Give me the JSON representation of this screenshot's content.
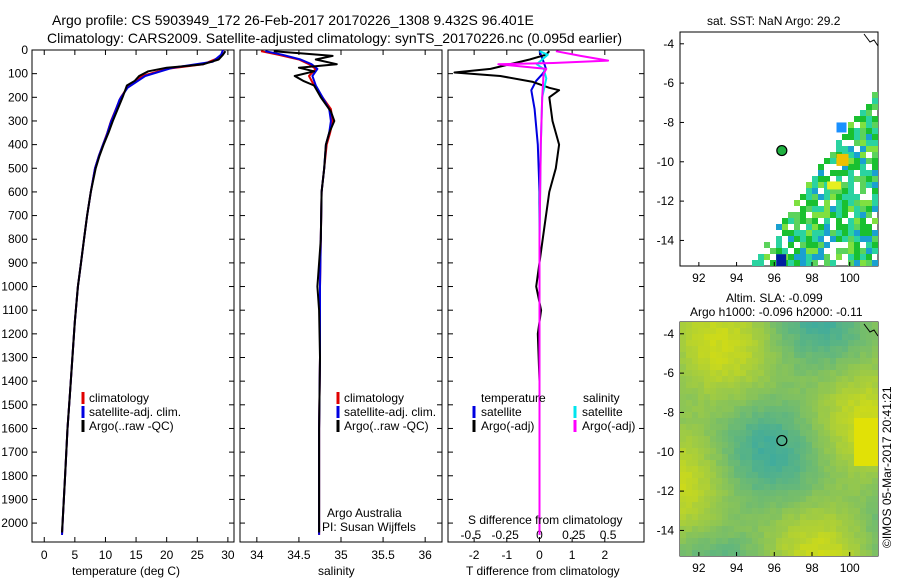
{
  "header": {
    "title": "Argo profile: CS 5903949_172 26-Feb-2017 20170226_1308 9.432S 96.401E",
    "subtitle": "Climatology: CARS2009. Satellite-adjusted climatology: synTS_20170226.nc (0.095d earlier)"
  },
  "colors": {
    "climatology": "#e00000",
    "satellite": "#0000e0",
    "argo": "#000000",
    "sat_salinity": "#00e5ee",
    "argo_salinity": "#ff00ff"
  },
  "chart_data": [
    {
      "type": "line",
      "name": "temperature",
      "xlabel": "temperature (deg C)",
      "ylabel": "",
      "xlim": [
        -2,
        31
      ],
      "ylim": [
        2080,
        0
      ],
      "x_ticks": [
        "0",
        "5",
        "10",
        "15",
        "20",
        "25",
        "30"
      ],
      "y_ticks": [
        "0",
        "100",
        "200",
        "300",
        "400",
        "500",
        "600",
        "700",
        "800",
        "900",
        "1000",
        "1100",
        "1200",
        "1300",
        "1400",
        "1500",
        "1600",
        "1700",
        "1800",
        "1900",
        "2000"
      ],
      "legend": [
        "climatology",
        "satellite-adj. clim.",
        "Argo(..raw -QC)"
      ],
      "series": [
        {
          "name": "climatology",
          "color": "#e00000",
          "points": [
            [
              29.2,
              0
            ],
            [
              28.8,
              30
            ],
            [
              26,
              60
            ],
            [
              20,
              80
            ],
            [
              16,
              110
            ],
            [
              13.8,
              150
            ],
            [
              12.5,
              200
            ],
            [
              11.7,
              250
            ],
            [
              10.9,
              300
            ],
            [
              10.3,
              350
            ],
            [
              9.6,
              400
            ],
            [
              8.9,
              450
            ],
            [
              8.3,
              500
            ],
            [
              7.6,
              600
            ],
            [
              7,
              700
            ],
            [
              6.5,
              800
            ],
            [
              6,
              900
            ],
            [
              5.5,
              1000
            ],
            [
              5,
              1150
            ],
            [
              4.6,
              1300
            ],
            [
              4.2,
              1450
            ],
            [
              3.8,
              1600
            ],
            [
              3.4,
              1800
            ],
            [
              3.1,
              1950
            ],
            [
              2.9,
              2050
            ]
          ]
        },
        {
          "name": "satellite",
          "color": "#0000e0",
          "points": [
            [
              29.2,
              0
            ],
            [
              28.9,
              20
            ],
            [
              27.5,
              50
            ],
            [
              21,
              75
            ],
            [
              16.5,
              110
            ],
            [
              13.6,
              160
            ],
            [
              12.3,
              210
            ],
            [
              11.6,
              260
            ],
            [
              10.8,
              310
            ],
            [
              10.2,
              360
            ],
            [
              9.6,
              400
            ],
            [
              8.9,
              450
            ],
            [
              8.3,
              500
            ],
            [
              7.6,
              600
            ],
            [
              7,
              700
            ],
            [
              6.5,
              800
            ],
            [
              6,
              900
            ],
            [
              5.5,
              1000
            ],
            [
              5,
              1150
            ],
            [
              4.6,
              1300
            ],
            [
              4.2,
              1450
            ],
            [
              3.8,
              1600
            ],
            [
              3.4,
              1800
            ],
            [
              3.1,
              1950
            ],
            [
              2.9,
              2050
            ]
          ]
        },
        {
          "name": "argo",
          "color": "#000000",
          "points": [
            [
              29.6,
              5
            ],
            [
              29.2,
              20
            ],
            [
              28.5,
              40
            ],
            [
              26,
              60
            ],
            [
              23,
              68
            ],
            [
              20,
              75
            ],
            [
              17,
              90
            ],
            [
              15.5,
              110
            ],
            [
              14.8,
              130
            ],
            [
              13.5,
              150
            ],
            [
              12.8,
              200
            ],
            [
              12,
              250
            ],
            [
              11.2,
              300
            ],
            [
              10.5,
              350
            ],
            [
              9.7,
              400
            ],
            [
              9,
              450
            ],
            [
              8.4,
              500
            ],
            [
              7.6,
              600
            ],
            [
              7,
              700
            ],
            [
              6.5,
              800
            ],
            [
              6,
              900
            ],
            [
              5.5,
              1000
            ],
            [
              5,
              1150
            ],
            [
              4.6,
              1300
            ],
            [
              4.2,
              1450
            ],
            [
              3.8,
              1600
            ],
            [
              3.4,
              1800
            ],
            [
              3.1,
              1950
            ],
            [
              2.9,
              2040
            ]
          ]
        }
      ]
    },
    {
      "type": "line",
      "name": "salinity",
      "xlabel": "salinity",
      "xlim": [
        33.8,
        36.2
      ],
      "ylim": [
        2080,
        0
      ],
      "x_ticks": [
        "34",
        "34.5",
        "35",
        "35.5",
        "36"
      ],
      "legend": [
        "climatology",
        "satellite-adj. clim.",
        "Argo(..raw -QC)"
      ],
      "annotation": [
        "Argo Australia",
        "PI: Susan Wijffels"
      ],
      "series": [
        {
          "name": "climatology",
          "color": "#e00000",
          "points": [
            [
              34.05,
              5
            ],
            [
              34.25,
              20
            ],
            [
              34.5,
              40
            ],
            [
              34.62,
              60
            ],
            [
              34.7,
              80
            ],
            [
              34.62,
              110
            ],
            [
              34.68,
              150
            ],
            [
              34.78,
              200
            ],
            [
              34.88,
              250
            ],
            [
              34.9,
              300
            ],
            [
              34.87,
              350
            ],
            [
              34.83,
              400
            ],
            [
              34.8,
              500
            ],
            [
              34.77,
              600
            ],
            [
              34.76,
              800
            ],
            [
              34.75,
              1000
            ],
            [
              34.75,
              1300
            ],
            [
              34.74,
              1600
            ],
            [
              34.74,
              2050
            ]
          ]
        },
        {
          "name": "satellite",
          "color": "#0000e0",
          "points": [
            [
              34.1,
              5
            ],
            [
              34.3,
              20
            ],
            [
              34.52,
              40
            ],
            [
              34.65,
              60
            ],
            [
              34.72,
              80
            ],
            [
              34.66,
              110
            ],
            [
              34.7,
              150
            ],
            [
              34.78,
              200
            ],
            [
              34.86,
              250
            ],
            [
              34.88,
              300
            ],
            [
              34.86,
              350
            ],
            [
              34.82,
              400
            ],
            [
              34.8,
              500
            ],
            [
              34.77,
              600
            ],
            [
              34.76,
              800
            ],
            [
              34.75,
              1000
            ],
            [
              34.75,
              1300
            ],
            [
              34.74,
              1600
            ],
            [
              34.74,
              2050
            ]
          ]
        },
        {
          "name": "argo",
          "color": "#000000",
          "points": [
            [
              34.2,
              5
            ],
            [
              34.55,
              15
            ],
            [
              34.9,
              25
            ],
            [
              34.7,
              40
            ],
            [
              34.95,
              60
            ],
            [
              34.5,
              75
            ],
            [
              34.68,
              90
            ],
            [
              34.45,
              110
            ],
            [
              34.55,
              130
            ],
            [
              34.68,
              150
            ],
            [
              34.76,
              200
            ],
            [
              34.88,
              260
            ],
            [
              34.92,
              300
            ],
            [
              34.86,
              350
            ],
            [
              34.82,
              400
            ],
            [
              34.8,
              500
            ],
            [
              34.77,
              600
            ],
            [
              34.76,
              800
            ],
            [
              34.72,
              1000
            ],
            [
              34.74,
              1100
            ],
            [
              34.75,
              1300
            ],
            [
              34.74,
              1600
            ],
            [
              34.74,
              2040
            ]
          ]
        }
      ]
    },
    {
      "type": "line",
      "name": "difference from climatology",
      "xlabel": "T difference from climatology",
      "x2label": "S difference from climatology",
      "xlim": [
        -2.8,
        3.2
      ],
      "ylim": [
        2080,
        0
      ],
      "x_ticks": [
        "-2",
        "-1",
        "0",
        "1",
        "2"
      ],
      "x2_ticks": [
        "-0.5",
        "-0.25",
        "0",
        "0.25",
        "0.5"
      ],
      "legend_temperature": [
        "temperature",
        "satellite",
        "Argo(-adj)"
      ],
      "legend_salinity": [
        "salinity",
        "satellite",
        "Argo(-adj)"
      ],
      "series": [
        {
          "name": "temperature satellite",
          "color": "#0000e0",
          "points": [
            [
              0,
              5
            ],
            [
              0.1,
              40
            ],
            [
              0.15,
              60
            ],
            [
              0.2,
              80
            ],
            [
              0.1,
              100
            ],
            [
              -0.1,
              130
            ],
            [
              -0.25,
              170
            ],
            [
              -0.15,
              250
            ],
            [
              -0.05,
              400
            ],
            [
              0,
              600
            ],
            [
              0,
              1000
            ],
            [
              0,
              2050
            ]
          ]
        },
        {
          "name": "temperature argo",
          "color": "#000000",
          "points": [
            [
              0.3,
              5
            ],
            [
              0.2,
              20
            ],
            [
              -0.3,
              40
            ],
            [
              -1.5,
              80
            ],
            [
              -2.6,
              95
            ],
            [
              -1.2,
              110
            ],
            [
              -0.2,
              135
            ],
            [
              0.3,
              160
            ],
            [
              0.6,
              170
            ],
            [
              0.3,
              200
            ],
            [
              0.4,
              300
            ],
            [
              0.6,
              400
            ],
            [
              0.5,
              500
            ],
            [
              0.3,
              600
            ],
            [
              0.1,
              800
            ],
            [
              -0.1,
              1000
            ],
            [
              0.05,
              1100
            ],
            [
              -0.05,
              1200
            ],
            [
              0,
              1400
            ],
            [
              0,
              2040
            ]
          ]
        },
        {
          "name": "salinity satellite",
          "color": "#00e5ee",
          "points": [
            [
              0,
              5
            ],
            [
              0.06,
              20
            ],
            [
              0.02,
              40
            ],
            [
              -0.02,
              60
            ],
            [
              0.03,
              80
            ],
            [
              0.05,
              120
            ],
            [
              0.02,
              200
            ],
            [
              0.01,
              400
            ],
            [
              0,
              800
            ],
            [
              0,
              2050
            ]
          ]
        },
        {
          "name": "salinity argo",
          "color": "#ff00ff",
          "points": [
            [
              0.12,
              5
            ],
            [
              0.3,
              25
            ],
            [
              0.5,
              45
            ],
            [
              0.1,
              55
            ],
            [
              -0.3,
              60
            ],
            [
              0.05,
              80
            ],
            [
              0.03,
              100
            ],
            [
              0.02,
              200
            ],
            [
              0.01,
              400
            ],
            [
              0,
              800
            ],
            [
              0,
              2050
            ]
          ]
        }
      ]
    },
    {
      "type": "heatmap",
      "name": "SST map",
      "title": "sat. SST: NaN Argo: 29.2",
      "xlim": [
        91,
        101.5
      ],
      "ylim": [
        -15.3,
        -3.4
      ],
      "x_ticks": [
        "92",
        "94",
        "96",
        "98",
        "100"
      ],
      "y_ticks": [
        "-4",
        "-6",
        "-8",
        "-10",
        "-12",
        "-14"
      ],
      "argo_position": [
        96.4,
        -9.43
      ]
    },
    {
      "type": "heatmap",
      "name": "SLA map",
      "title": "Altim. SLA: -0.099",
      "subtitle": "Argo h1000: -0.096 h2000: -0.11",
      "xlim": [
        91,
        101.5
      ],
      "ylim": [
        -15.3,
        -3.4
      ],
      "x_ticks": [
        "92",
        "94",
        "96",
        "98",
        "100"
      ],
      "y_ticks": [
        "-4",
        "-6",
        "-8",
        "-10",
        "-12",
        "-14"
      ],
      "argo_position": [
        96.4,
        -9.43
      ]
    }
  ],
  "stamp": "©IMOS 05-Mar-2017 20:41:21"
}
